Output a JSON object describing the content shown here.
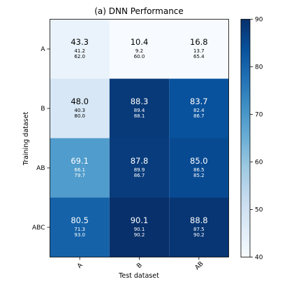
{
  "chart_data": {
    "type": "heatmap",
    "title": "(a) DNN Performance",
    "xlabel": "Test dataset",
    "ylabel": "Training dataset",
    "x_categories": [
      "A",
      "B",
      "AB"
    ],
    "y_categories": [
      "A",
      "B",
      "AB",
      "ABC"
    ],
    "cells": [
      [
        {
          "value": "43.3",
          "sub1": "41.2",
          "sub2": "62.0"
        },
        {
          "value": "10.4",
          "sub1": "9.2",
          "sub2": "60.0"
        },
        {
          "value": "16.8",
          "sub1": "13.7",
          "sub2": "65.4"
        }
      ],
      [
        {
          "value": "48.0",
          "sub1": "40.3",
          "sub2": "80.0"
        },
        {
          "value": "88.3",
          "sub1": "89.4",
          "sub2": "88.1"
        },
        {
          "value": "83.7",
          "sub1": "82.4",
          "sub2": "86.7"
        }
      ],
      [
        {
          "value": "69.1",
          "sub1": "66.1",
          "sub2": "79.7"
        },
        {
          "value": "87.8",
          "sub1": "89.9",
          "sub2": "86.7"
        },
        {
          "value": "85.0",
          "sub1": "86.5",
          "sub2": "85.2"
        }
      ],
      [
        {
          "value": "80.5",
          "sub1": "71.3",
          "sub2": "93.0"
        },
        {
          "value": "90.1",
          "sub1": "90.1",
          "sub2": "90.2"
        },
        {
          "value": "88.8",
          "sub1": "87.5",
          "sub2": "90.2"
        }
      ]
    ],
    "colorbar": {
      "min": 40,
      "max": 90,
      "ticks": [
        "40",
        "50",
        "60",
        "70",
        "80",
        "90"
      ],
      "colormap": "Blues"
    },
    "colors": {
      "low": "#f7fbff",
      "high": "#08306b",
      "text_dark": "#000000",
      "text_light": "#ffffff"
    }
  }
}
